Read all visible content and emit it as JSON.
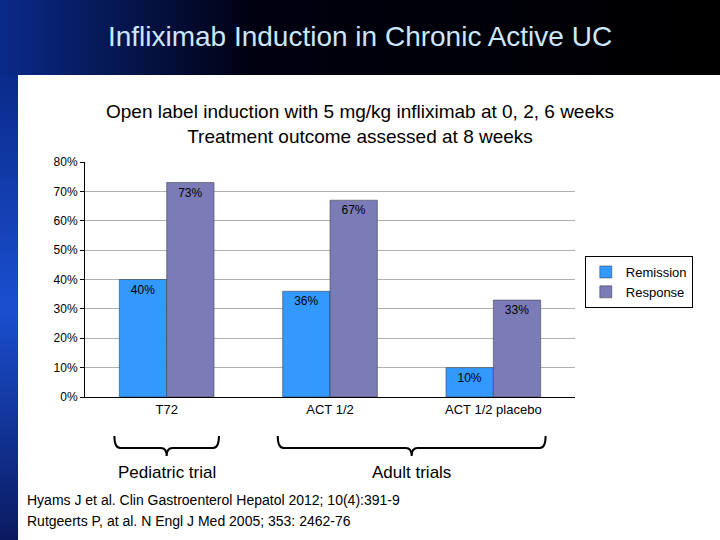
{
  "chart_data": {
    "type": "bar",
    "title": "Infliximab Induction in Chronic Active UC",
    "subtitle": [
      "Open label induction with 5 mg/kg infliximab at 0, 2, 6 weeks",
      "Treatment outcome assessed at 8 weeks"
    ],
    "categories": [
      "T72",
      "ACT 1/2",
      "ACT 1/2 placebo"
    ],
    "series": [
      {
        "name": "Remission",
        "color": "#3399ff",
        "values": [
          40,
          36,
          10
        ],
        "value_labels": [
          "40%",
          "36%",
          "10%"
        ]
      },
      {
        "name": "Response",
        "color": "#7b7bb8",
        "values": [
          73,
          67,
          33
        ],
        "value_labels": [
          "73%",
          "67%",
          "33%"
        ]
      }
    ],
    "ylim": [
      0,
      80
    ],
    "yticks": [
      {
        "value": 0,
        "label": "0%"
      },
      {
        "value": 10,
        "label": "10%"
      },
      {
        "value": 20,
        "label": "20%"
      },
      {
        "value": 30,
        "label": "30%"
      },
      {
        "value": 40,
        "label": "40%"
      },
      {
        "value": 50,
        "label": "50%"
      },
      {
        "value": 60,
        "label": "60%"
      },
      {
        "value": 70,
        "label": "70%"
      },
      {
        "value": 80,
        "label": "80%"
      }
    ],
    "grid": true,
    "legend": "right",
    "data_labels": true,
    "annotations": [
      {
        "text": "Pediatric trial",
        "categories": [
          "T72"
        ]
      },
      {
        "text": "Adult trials",
        "categories": [
          "ACT 1/2",
          "ACT 1/2 placebo"
        ]
      }
    ],
    "source": [
      "Hyams J et al. Clin Gastroenterol Hepatol 2012; 10(4):391-9",
      "Rutgeerts P, at al. N Engl J Med 2005; 353: 2462-76"
    ]
  }
}
